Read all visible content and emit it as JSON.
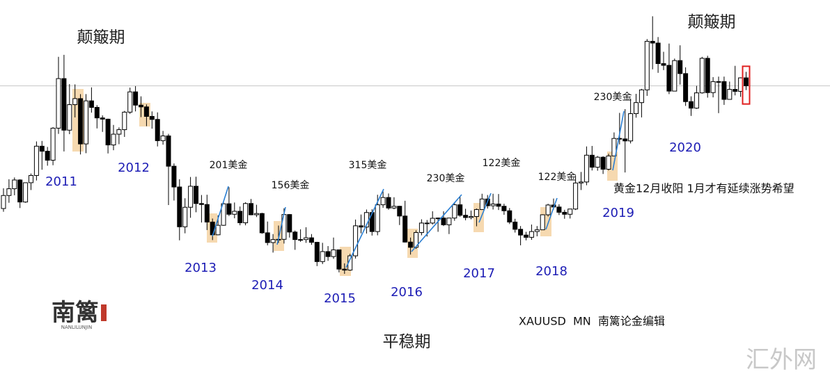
{
  "chart_data": {
    "type": "candlestick",
    "ylim": [
      610,
      2140
    ],
    "up_color": "#ffffff",
    "down_color": "#000000",
    "open": [
      1307,
      1359,
      1386,
      1421,
      1333,
      1410,
      1439,
      1556,
      1536,
      1500,
      1628,
      1826,
      1620,
      1722,
      1746,
      1565,
      1737,
      1711,
      1669,
      1664,
      1561,
      1604,
      1622,
      1692,
      1773,
      1720,
      1713,
      1675,
      1663,
      1578,
      1597,
      1476,
      1393,
      1234,
      1312,
      1396,
      1327,
      1323,
      1253,
      1202,
      1240,
      1326,
      1284,
      1296,
      1250,
      1327,
      1282,
      1287,
      1210,
      1171,
      1183,
      1184,
      1283,
      1213,
      1183,
      1183,
      1190,
      1172,
      1095,
      1135,
      1115,
      1142,
      1065,
      1061,
      1118,
      1238,
      1233,
      1291,
      1215,
      1322,
      1351,
      1309,
      1316,
      1277,
      1173,
      1152,
      1211,
      1249,
      1249,
      1268,
      1269,
      1242,
      1269,
      1322,
      1280,
      1271,
      1275,
      1303,
      1345,
      1318,
      1325,
      1316,
      1298,
      1253,
      1224,
      1201,
      1192,
      1215,
      1222,
      1282,
      1321,
      1313,
      1292,
      1284,
      1305,
      1409,
      1413,
      1520,
      1472,
      1512,
      1464,
      1517,
      1587,
      1585,
      1577,
      1686,
      1730,
      1781,
      1975,
      1968,
      1886,
      1879,
      1776,
      1898,
      1846,
      1734,
      1708,
      1769,
      1907,
      1770,
      1814,
      1814,
      1743,
      1783,
      1775,
      1829
    ],
    "high": [
      1388,
      1424,
      1431,
      1424,
      1411,
      1447,
      1575,
      1577,
      1553,
      1632,
      1913,
      1921,
      1804,
      1803,
      1764,
      1764,
      1791,
      1720,
      1679,
      1666,
      1641,
      1631,
      1697,
      1790,
      1796,
      1755,
      1723,
      1695,
      1691,
      1617,
      1605,
      1487,
      1424,
      1348,
      1433,
      1434,
      1361,
      1362,
      1267,
      1280,
      1332,
      1392,
      1331,
      1315,
      1332,
      1345,
      1322,
      1290,
      1255,
      1205,
      1239,
      1308,
      1285,
      1219,
      1224,
      1232,
      1205,
      1174,
      1170,
      1157,
      1191,
      1142,
      1088,
      1126,
      1263,
      1283,
      1303,
      1304,
      1362,
      1375,
      1367,
      1352,
      1318,
      1338,
      1191,
      1220,
      1264,
      1261,
      1296,
      1271,
      1296,
      1270,
      1331,
      1357,
      1306,
      1299,
      1307,
      1366,
      1361,
      1366,
      1365,
      1326,
      1309,
      1266,
      1237,
      1214,
      1243,
      1237,
      1284,
      1326,
      1347,
      1324,
      1302,
      1306,
      1439,
      1453,
      1555,
      1557,
      1517,
      1516,
      1526,
      1611,
      1689,
      1704,
      1747,
      1765,
      1785,
      1984,
      2075,
      1992,
      1933,
      1966,
      1906,
      1959,
      1871,
      1755,
      1797,
      1913,
      1917,
      1832,
      1834,
      1834,
      1814,
      1877,
      1831,
      1853
    ],
    "low": [
      1294,
      1330,
      1360,
      1309,
      1330,
      1381,
      1419,
      1462,
      1478,
      1480,
      1605,
      1535,
      1604,
      1671,
      1523,
      1528,
      1690,
      1627,
      1613,
      1527,
      1540,
      1564,
      1593,
      1685,
      1695,
      1672,
      1636,
      1626,
      1555,
      1562,
      1321,
      1339,
      1180,
      1208,
      1270,
      1292,
      1251,
      1221,
      1181,
      1200,
      1238,
      1277,
      1268,
      1240,
      1240,
      1280,
      1273,
      1206,
      1160,
      1131,
      1170,
      1167,
      1191,
      1142,
      1174,
      1170,
      1162,
      1077,
      1085,
      1098,
      1106,
      1052,
      1046,
      1058,
      1107,
      1208,
      1207,
      1199,
      1200,
      1310,
      1302,
      1304,
      1241,
      1171,
      1123,
      1146,
      1200,
      1195,
      1243,
      1214,
      1237,
      1205,
      1258,
      1274,
      1260,
      1264,
      1236,
      1302,
      1307,
      1303,
      1301,
      1282,
      1245,
      1211,
      1160,
      1180,
      1182,
      1196,
      1221,
      1275,
      1303,
      1281,
      1266,
      1267,
      1301,
      1381,
      1400,
      1459,
      1458,
      1445,
      1459,
      1517,
      1563,
      1451,
      1567,
      1670,
      1671,
      1757,
      1863,
      1849,
      1860,
      1764,
      1775,
      1802,
      1717,
      1677,
      1705,
      1766,
      1750,
      1751,
      1688,
      1721,
      1746,
      1759,
      1753,
      1780
    ],
    "close": [
      1359,
      1386,
      1421,
      1333,
      1410,
      1439,
      1556,
      1536,
      1500,
      1628,
      1826,
      1620,
      1722,
      1746,
      1565,
      1737,
      1711,
      1669,
      1664,
      1561,
      1604,
      1622,
      1692,
      1773,
      1720,
      1713,
      1675,
      1663,
      1578,
      1597,
      1476,
      1393,
      1234,
      1312,
      1396,
      1327,
      1323,
      1253,
      1202,
      1240,
      1326,
      1284,
      1296,
      1250,
      1327,
      1282,
      1287,
      1210,
      1171,
      1183,
      1184,
      1283,
      1213,
      1183,
      1183,
      1190,
      1172,
      1095,
      1135,
      1115,
      1142,
      1065,
      1061,
      1118,
      1238,
      1233,
      1291,
      1215,
      1322,
      1351,
      1309,
      1316,
      1277,
      1173,
      1152,
      1211,
      1249,
      1249,
      1268,
      1269,
      1242,
      1269,
      1322,
      1280,
      1271,
      1275,
      1303,
      1345,
      1318,
      1325,
      1316,
      1298,
      1253,
      1224,
      1201,
      1192,
      1215,
      1222,
      1282,
      1321,
      1313,
      1292,
      1284,
      1305,
      1409,
      1413,
      1520,
      1472,
      1512,
      1464,
      1517,
      1587,
      1585,
      1577,
      1686,
      1730,
      1781,
      1975,
      1968,
      1886,
      1879,
      1776,
      1898,
      1846,
      1734,
      1708,
      1769,
      1907,
      1770,
      1814,
      1814,
      1743,
      1783,
      1775,
      1829,
      1797
    ],
    "phase_labels": [
      "颠簸期",
      "颠簸期",
      "平稳期"
    ],
    "year_labels": [
      "2011",
      "2012",
      "2013",
      "2014",
      "2015",
      "2016",
      "2017",
      "2018",
      "2019",
      "2020"
    ],
    "gain_labels": [
      "201美金",
      "156美金",
      "315美金",
      "230美金",
      "122美金",
      "122美金",
      "230美金"
    ],
    "note": "黄金12月收阳 1月才有延续涨势希望",
    "source": "XAUUSD  MN  南篱论金编辑",
    "watermark": "汇外网",
    "logo": {
      "name": "南篱",
      "subtitle": "NANLILUNJIN"
    }
  }
}
